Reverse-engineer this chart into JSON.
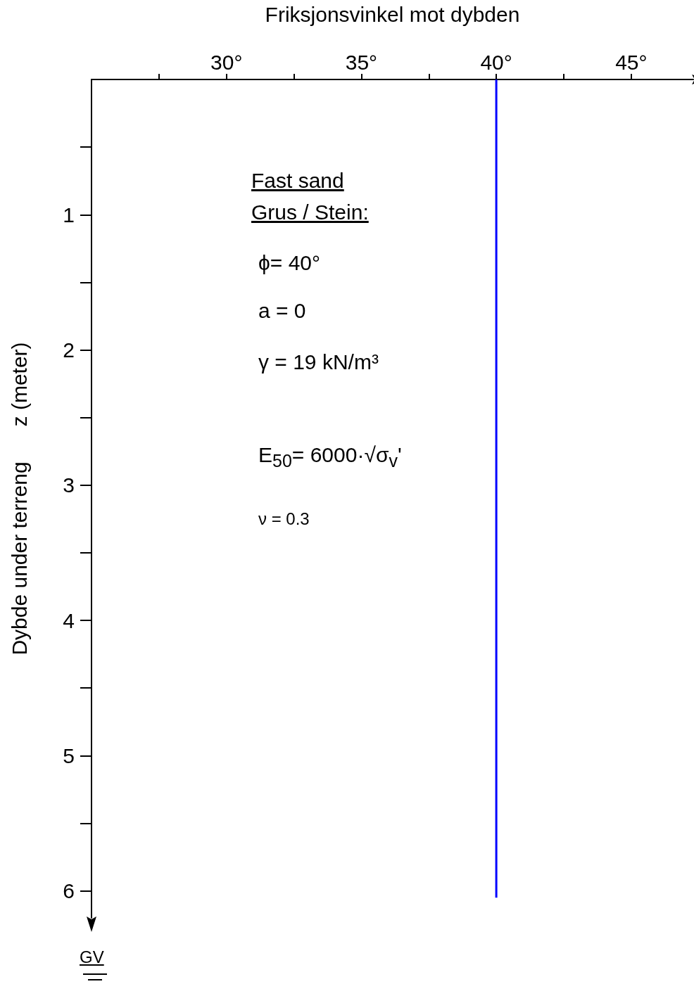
{
  "chart_data": {
    "type": "line",
    "xlabel": "Friksjonsvinkel mot dybden",
    "ylabel": "Dybde under terreng      z (meter)",
    "series": [
      {
        "color": "#0000ff",
        "x": [
          40,
          40
        ],
        "values": [
          0,
          6.05
        ]
      }
    ],
    "xlim": [
      25,
      47.3
    ],
    "xticks": [
      {
        "value": 27.5,
        "label": null
      },
      {
        "value": 30,
        "label": "30°"
      },
      {
        "value": 32.5,
        "label": null
      },
      {
        "value": 35,
        "label": "35°"
      },
      {
        "value": 37.5,
        "label": null
      },
      {
        "value": 40,
        "label": "40°"
      },
      {
        "value": 42.5,
        "label": null
      },
      {
        "value": 45,
        "label": "45°"
      }
    ],
    "ylim": [
      6.2,
      0
    ],
    "yticks": [
      {
        "value": 0.5,
        "label": null
      },
      1,
      {
        "value": 1.5,
        "label": null
      },
      2,
      {
        "value": 2.5,
        "label": null
      },
      3,
      {
        "value": 3.5,
        "label": null
      },
      4,
      {
        "value": 4.5,
        "label": null
      },
      5,
      {
        "value": 5.5,
        "label": null
      },
      6
    ],
    "grid": false,
    "marker": "none",
    "line_style": "solid",
    "annotations": [
      "Fast sand",
      "Grus / Stein:",
      "ϕ= 40°",
      "a = 0",
      "γ = 19 kN/m³",
      "E$_{50}$= 6000·√σ$_{v}$'",
      "ν = 0.3",
      "GV"
    ]
  }
}
